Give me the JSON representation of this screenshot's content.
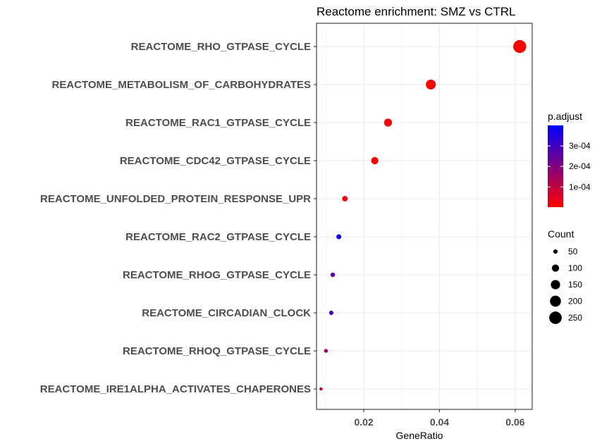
{
  "chart_data": {
    "type": "scatter",
    "title": "Reactome enrichment: SMZ vs CTRL",
    "xlabel": "GeneRatio",
    "ylabel": "",
    "xlim": [
      0.0075,
      0.0645
    ],
    "xticks": [
      0.02,
      0.04,
      0.06
    ],
    "xtick_labels": [
      "0.02",
      "0.04",
      "0.06"
    ],
    "grid": true,
    "categories": [
      "REACTOME_RHO_GTPASE_CYCLE",
      "REACTOME_METABOLISM_OF_CARBOHYDRATES",
      "REACTOME_RAC1_GTPASE_CYCLE",
      "REACTOME_CDC42_GTPASE_CYCLE",
      "REACTOME_UNFOLDED_PROTEIN_RESPONSE_UPR",
      "REACTOME_RAC2_GTPASE_CYCLE",
      "REACTOME_RHOG_GTPASE_CYCLE",
      "REACTOME_CIRCADIAN_CLOCK",
      "REACTOME_RHOQ_GTPASE_CYCLE",
      "REACTOME_IRE1ALPHA_ACTIVATES_CHAPERONES"
    ],
    "points": [
      {
        "term": "REACTOME_RHO_GTPASE_CYCLE",
        "gene_ratio": 0.0612,
        "count": 268,
        "p_adjust": 2e-06
      },
      {
        "term": "REACTOME_METABOLISM_OF_CARBOHYDRATES",
        "gene_ratio": 0.0377,
        "count": 165,
        "p_adjust": 5e-06
      },
      {
        "term": "REACTOME_RAC1_GTPASE_CYCLE",
        "gene_ratio": 0.0264,
        "count": 116,
        "p_adjust": 3e-06
      },
      {
        "term": "REACTOME_CDC42_GTPASE_CYCLE",
        "gene_ratio": 0.0229,
        "count": 100,
        "p_adjust": 4e-06
      },
      {
        "term": "REACTOME_UNFOLDED_PROTEIN_RESPONSE_UPR",
        "gene_ratio": 0.015,
        "count": 66,
        "p_adjust": 1.5e-05
      },
      {
        "term": "REACTOME_RAC2_GTPASE_CYCLE",
        "gene_ratio": 0.0134,
        "count": 59,
        "p_adjust": 0.00039
      },
      {
        "term": "REACTOME_RHOG_GTPASE_CYCLE",
        "gene_ratio": 0.0118,
        "count": 52,
        "p_adjust": 0.00027
      },
      {
        "term": "REACTOME_CIRCADIAN_CLOCK",
        "gene_ratio": 0.0114,
        "count": 50,
        "p_adjust": 0.00029
      },
      {
        "term": "REACTOME_RHOQ_GTPASE_CYCLE",
        "gene_ratio": 0.01,
        "count": 44,
        "p_adjust": 0.00015
      },
      {
        "term": "REACTOME_IRE1ALPHA_ACTIVATES_CHAPERONES",
        "gene_ratio": 0.0087,
        "count": 38,
        "p_adjust": 0.00012
      }
    ],
    "legend_color": {
      "title": "p.adjust",
      "range": [
        1.5e-06,
        0.0004
      ],
      "ticks": [
        0.0001,
        0.0002,
        0.0003
      ],
      "tick_labels": [
        "1e-04",
        "2e-04",
        "3e-04"
      ],
      "low_color": "#FF0000",
      "high_color": "#0000FF",
      "placement": "right"
    },
    "legend_size": {
      "title": "Count",
      "values": [
        50,
        100,
        150,
        200,
        250
      ],
      "labels": [
        "50",
        "100",
        "150",
        "200",
        "250"
      ],
      "placement": "right"
    },
    "colors": {
      "grid": "#ebebeb",
      "panel_border": "#333333",
      "label_text": "#4d4d4d",
      "point_low": "#FF0000",
      "point_high": "#0000FF"
    }
  }
}
